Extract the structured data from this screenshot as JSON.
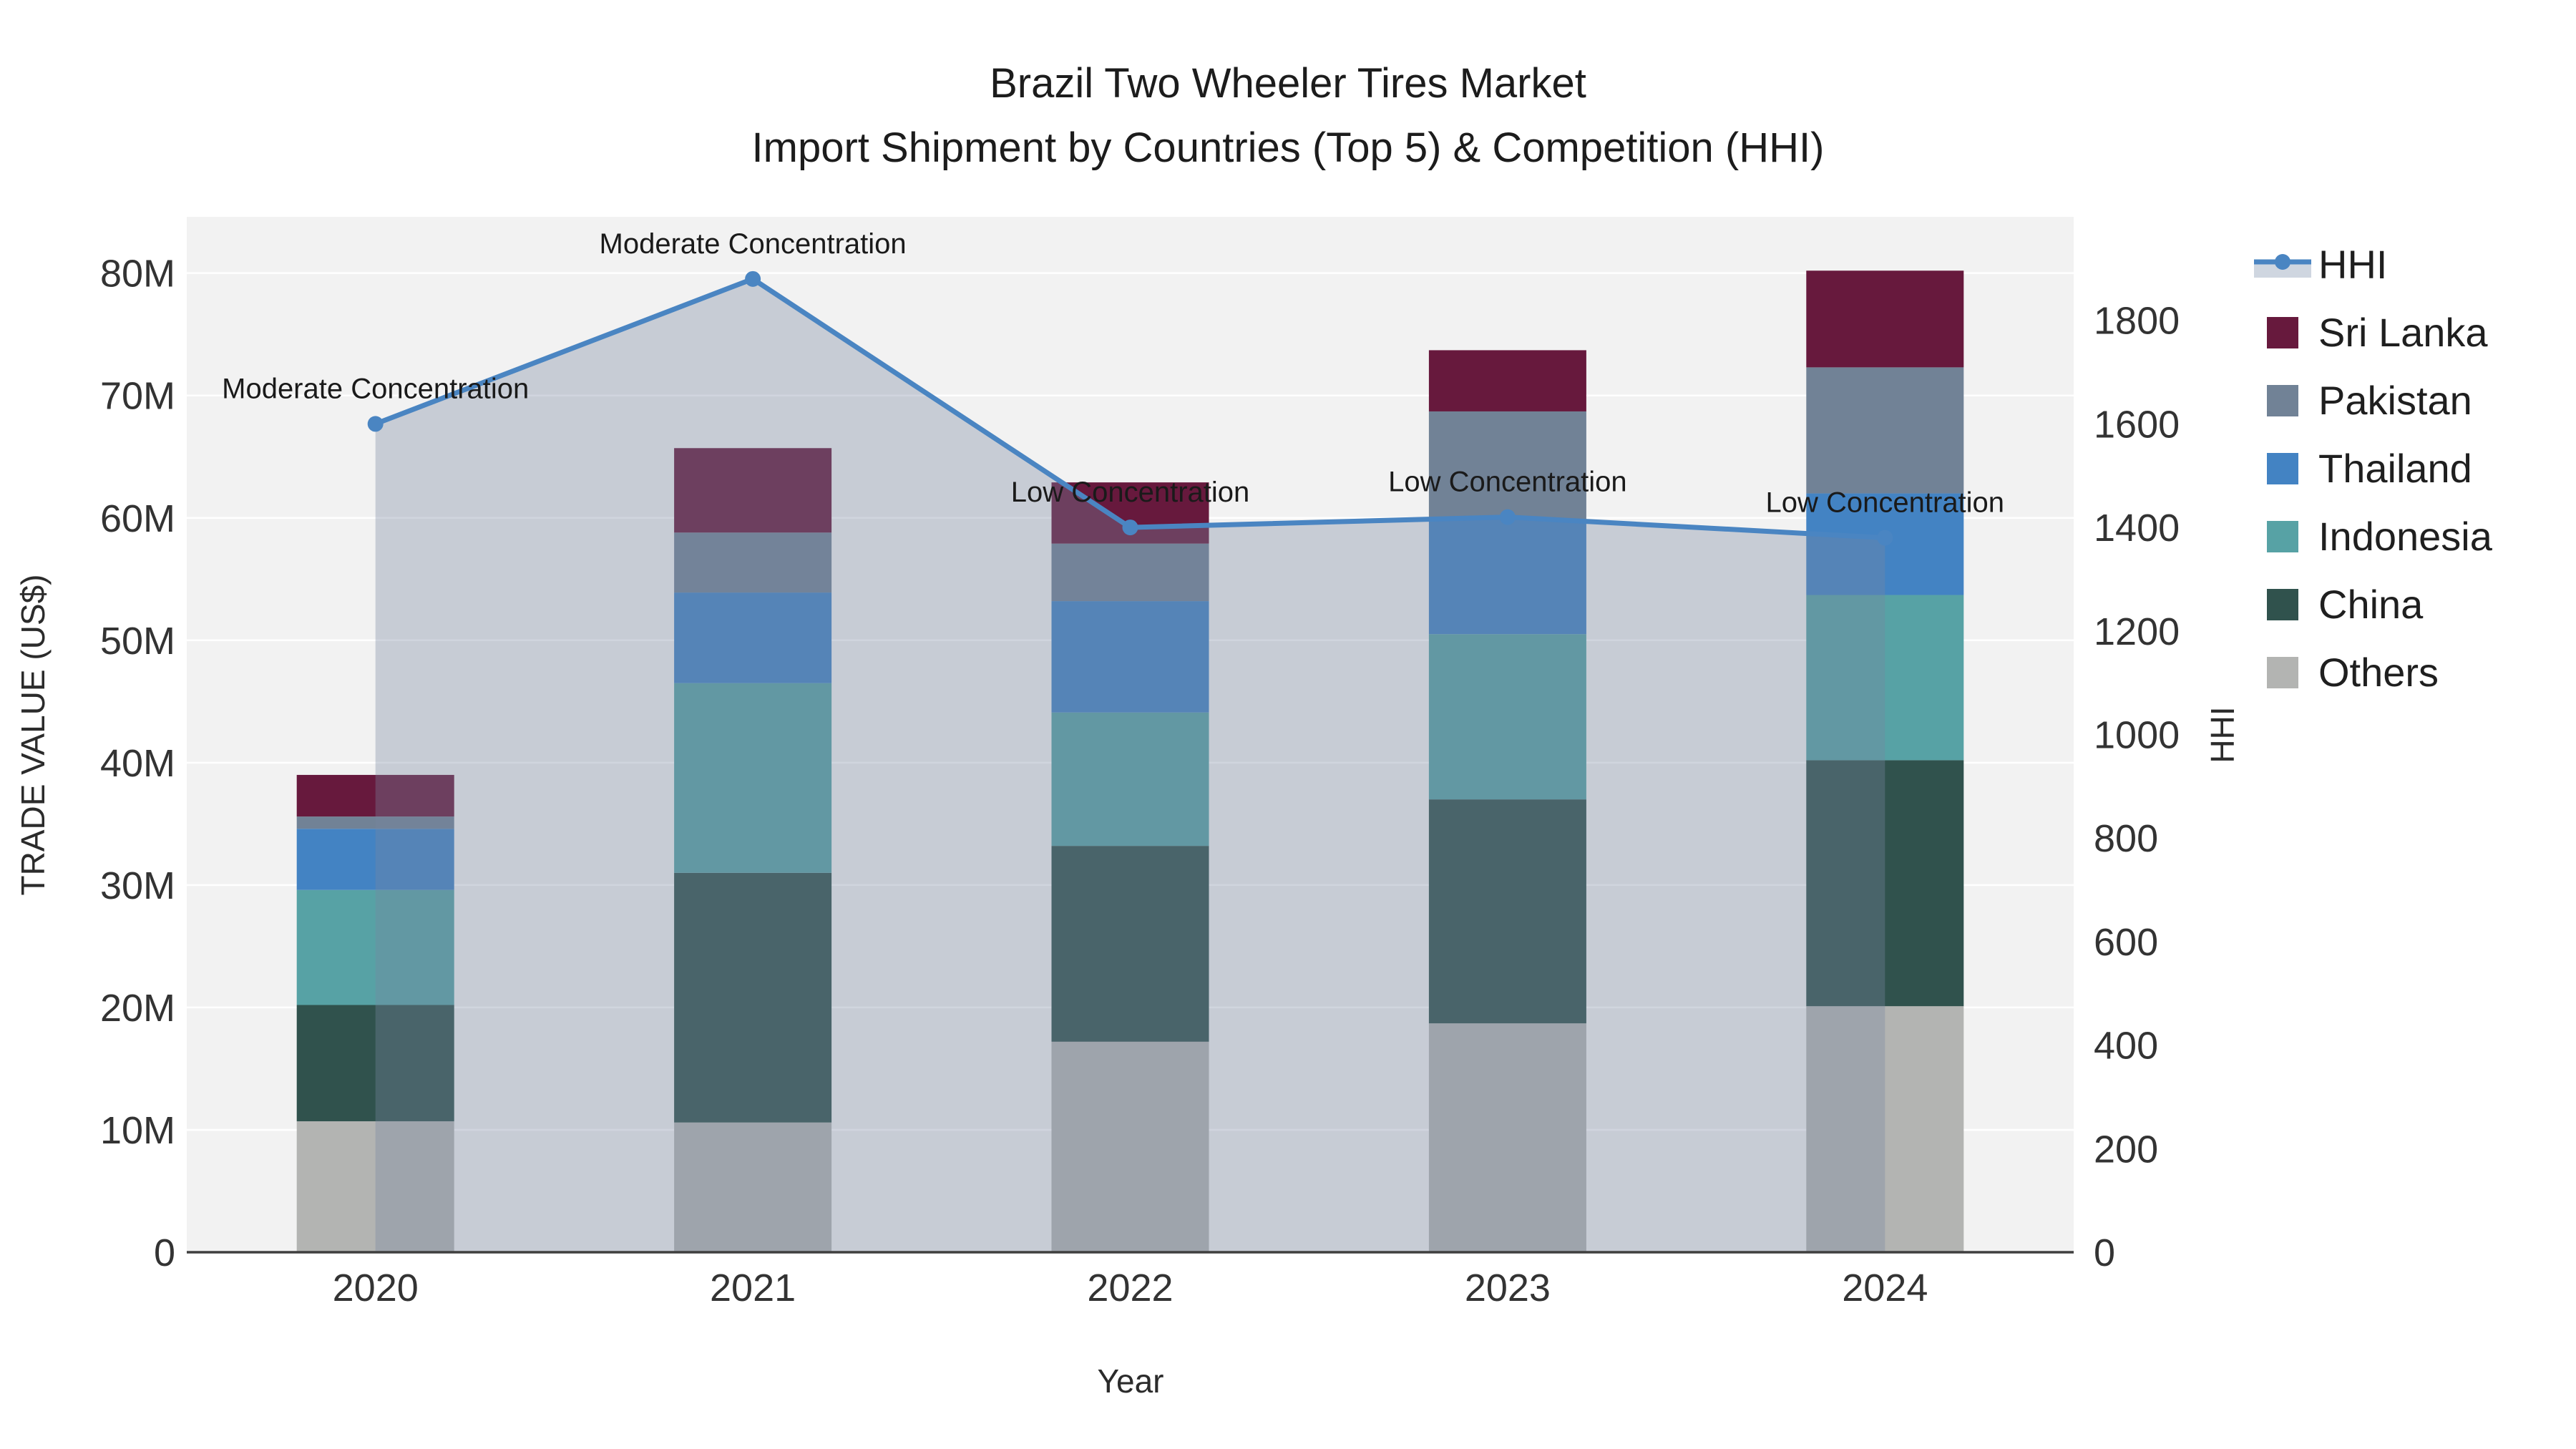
{
  "title": {
    "line1": "Brazil Two Wheeler Tires Market",
    "line2": "Import Shipment by Countries (Top 5) & Competition (HHI)"
  },
  "axes": {
    "x_title": "Year",
    "y_left_title": "TRADE VALUE (US$)",
    "y_right_title": "HHI",
    "y_left_ticks": [
      0,
      10,
      20,
      30,
      40,
      50,
      60,
      70,
      80
    ],
    "y_left_tick_suffix": "M",
    "y_left_max": 84.6,
    "y_right_ticks": [
      0,
      200,
      400,
      600,
      800,
      1000,
      1200,
      1400,
      1600,
      1800
    ],
    "y_right_max": 2000,
    "grid": "on"
  },
  "chart_data": {
    "type": "stacked-bar+line",
    "title": "Brazil Two Wheeler Tires Market — Import Shipment by Countries (Top 5) & Competition (HHI)",
    "categories": [
      "2020",
      "2021",
      "2022",
      "2023",
      "2024"
    ],
    "value_unit": "US$ millions",
    "series": [
      {
        "name": "Others",
        "color": "#b3b4b2",
        "values": [
          10.7,
          10.6,
          17.2,
          18.7,
          20.1
        ]
      },
      {
        "name": "China",
        "color": "#30524d",
        "values": [
          9.5,
          20.4,
          16.0,
          18.3,
          20.1
        ]
      },
      {
        "name": "Indonesia",
        "color": "#57a2a5",
        "values": [
          9.4,
          15.5,
          10.9,
          13.5,
          13.5
        ]
      },
      {
        "name": "Thailand",
        "color": "#4383c3",
        "values": [
          5.0,
          7.4,
          9.1,
          9.4,
          8.3
        ]
      },
      {
        "name": "Pakistan",
        "color": "#718296",
        "values": [
          1.0,
          4.9,
          4.7,
          8.8,
          10.3
        ]
      },
      {
        "name": "Sri Lanka",
        "color": "#67193d",
        "values": [
          3.4,
          6.9,
          5.0,
          5.0,
          7.9
        ]
      }
    ],
    "hhi": {
      "name": "HHI",
      "color": "#4a85c2",
      "area_fill": "rgba(120,134,160,0.35)",
      "values": [
        1600,
        1880,
        1400,
        1420,
        1380
      ]
    },
    "annotations": [
      {
        "category": "2020",
        "text": "Moderate Concentration"
      },
      {
        "category": "2021",
        "text": "Moderate Concentration"
      },
      {
        "category": "2022",
        "text": "Low Concentration"
      },
      {
        "category": "2023",
        "text": "Low Concentration"
      },
      {
        "category": "2024",
        "text": "Low Concentration"
      }
    ],
    "legend_position": "right",
    "legend": [
      {
        "name": "HHI",
        "type": "line",
        "color": "#4a85c2",
        "band": "#cfd6e0"
      },
      {
        "name": "Sri Lanka",
        "type": "patch",
        "color": "#67193d"
      },
      {
        "name": "Pakistan",
        "type": "patch",
        "color": "#718296"
      },
      {
        "name": "Thailand",
        "type": "patch",
        "color": "#4383c3"
      },
      {
        "name": "Indonesia",
        "type": "patch",
        "color": "#57a2a5"
      },
      {
        "name": "China",
        "type": "patch",
        "color": "#30524d"
      },
      {
        "name": "Others",
        "type": "patch",
        "color": "#b3b4b2"
      }
    ]
  },
  "colors": {
    "plot_bg": "#f2f2f2",
    "grid": "#ffffff",
    "axis_line": "#3f3f3f",
    "tick_text": "#333333",
    "annotation_text": "#1a1a1a"
  }
}
